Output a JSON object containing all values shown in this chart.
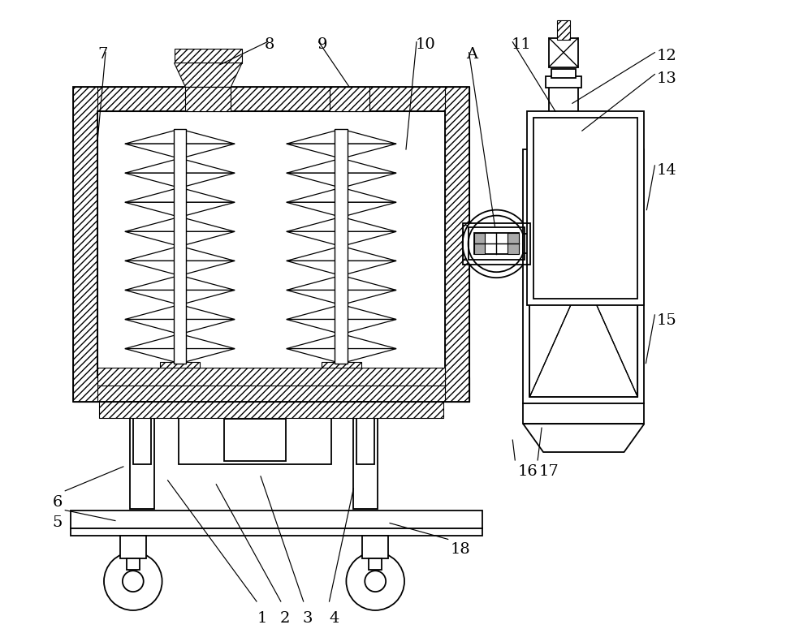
{
  "bg_color": "#ffffff",
  "line_color": "#000000",
  "figsize": [
    10.0,
    7.75
  ],
  "dpi": 100
}
